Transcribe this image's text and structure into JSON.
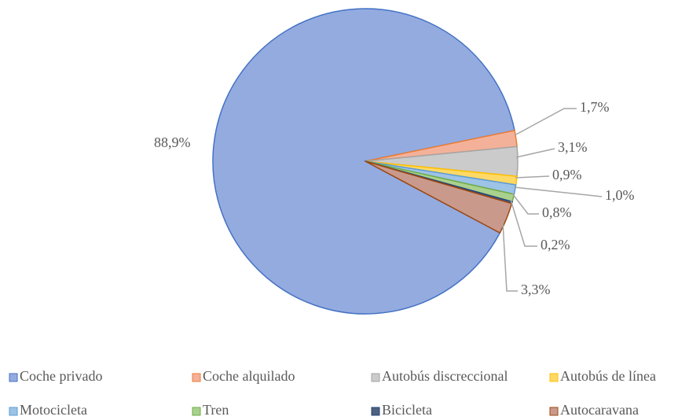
{
  "chart_data": {
    "type": "pie",
    "categories": [
      "Coche privado",
      "Coche alquilado",
      "Autobús discreccional",
      "Autobús de línea",
      "Motocicleta",
      "Tren",
      "Bicicleta",
      "Autocaravana"
    ],
    "values": [
      88.9,
      1.7,
      3.1,
      0.9,
      1.0,
      0.8,
      0.2,
      3.3
    ],
    "value_labels": [
      "88,9%",
      "1,7%",
      "3,1%",
      "0,9%",
      "1,0%",
      "0,8%",
      "0,2%",
      "3,3%"
    ],
    "colors": [
      "#94abe0",
      "#f4b19a",
      "#cbcbcb",
      "#ffd966",
      "#9dc3e6",
      "#a9d18e",
      "#4f6080",
      "#c99a8c"
    ],
    "legend": "bottom"
  }
}
